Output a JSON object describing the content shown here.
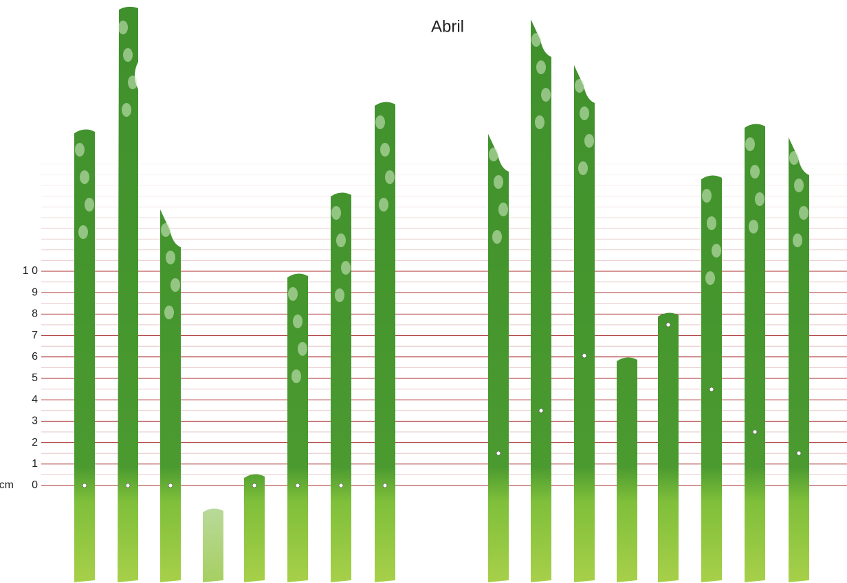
{
  "header": {
    "title": "Abril"
  },
  "scale": {
    "unit": "cm",
    "labels": [
      "0",
      "1",
      "2",
      "3",
      "4",
      "5",
      "6",
      "7",
      "8",
      "9",
      "1 0"
    ]
  }
}
